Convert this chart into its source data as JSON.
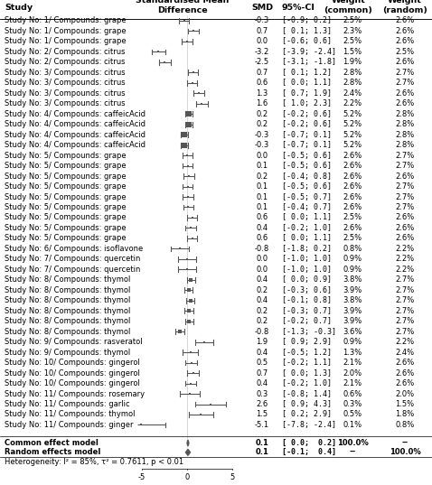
{
  "studies": [
    {
      "label": "Study No: 1/ Compounds: grape",
      "smd": -0.3,
      "ci_lo": -0.9,
      "ci_hi": 0.2,
      "w_common": "2.5%",
      "w_random": "2.6%"
    },
    {
      "label": "Study No: 1/ Compounds: grape",
      "smd": 0.7,
      "ci_lo": 0.1,
      "ci_hi": 1.3,
      "w_common": "2.3%",
      "w_random": "2.6%"
    },
    {
      "label": "Study No: 1/ Compounds: grape",
      "smd": 0.0,
      "ci_lo": -0.6,
      "ci_hi": 0.6,
      "w_common": "2.5%",
      "w_random": "2.6%"
    },
    {
      "label": "Study No: 2/ Compounds: citrus",
      "smd": -3.2,
      "ci_lo": -3.9,
      "ci_hi": -2.4,
      "w_common": "1.5%",
      "w_random": "2.5%"
    },
    {
      "label": "Study No: 2/ Compounds: citrus",
      "smd": -2.5,
      "ci_lo": -3.1,
      "ci_hi": -1.8,
      "w_common": "1.9%",
      "w_random": "2.6%"
    },
    {
      "label": "Study No: 3/ Compounds: citrus",
      "smd": 0.7,
      "ci_lo": 0.1,
      "ci_hi": 1.2,
      "w_common": "2.8%",
      "w_random": "2.7%"
    },
    {
      "label": "Study No: 3/ Compounds: citrus",
      "smd": 0.6,
      "ci_lo": 0.0,
      "ci_hi": 1.1,
      "w_common": "2.8%",
      "w_random": "2.7%"
    },
    {
      "label": "Study No: 3/ Compounds: citrus",
      "smd": 1.3,
      "ci_lo": 0.7,
      "ci_hi": 1.9,
      "w_common": "2.4%",
      "w_random": "2.6%"
    },
    {
      "label": "Study No: 3/ Compounds: citrus",
      "smd": 1.6,
      "ci_lo": 1.0,
      "ci_hi": 2.3,
      "w_common": "2.2%",
      "w_random": "2.6%"
    },
    {
      "label": "Study No: 4/ Compounds: caffeicAcid",
      "smd": 0.2,
      "ci_lo": -0.2,
      "ci_hi": 0.6,
      "w_common": "5.2%",
      "w_random": "2.8%"
    },
    {
      "label": "Study No: 4/ Compounds: caffeicAcid",
      "smd": 0.2,
      "ci_lo": -0.2,
      "ci_hi": 0.6,
      "w_common": "5.2%",
      "w_random": "2.8%"
    },
    {
      "label": "Study No: 4/ Compounds: caffeicAcid",
      "smd": -0.3,
      "ci_lo": -0.7,
      "ci_hi": 0.1,
      "w_common": "5.2%",
      "w_random": "2.8%"
    },
    {
      "label": "Study No: 4/ Compounds: caffeicAcid",
      "smd": -0.3,
      "ci_lo": -0.7,
      "ci_hi": 0.1,
      "w_common": "5.2%",
      "w_random": "2.8%"
    },
    {
      "label": "Study No: 5/ Compounds: grape",
      "smd": 0.0,
      "ci_lo": -0.5,
      "ci_hi": 0.6,
      "w_common": "2.6%",
      "w_random": "2.7%"
    },
    {
      "label": "Study No: 5/ Compounds: grape",
      "smd": 0.1,
      "ci_lo": -0.5,
      "ci_hi": 0.6,
      "w_common": "2.6%",
      "w_random": "2.7%"
    },
    {
      "label": "Study No: 5/ Compounds: grape",
      "smd": 0.2,
      "ci_lo": -0.4,
      "ci_hi": 0.8,
      "w_common": "2.6%",
      "w_random": "2.6%"
    },
    {
      "label": "Study No: 5/ Compounds: grape",
      "smd": 0.1,
      "ci_lo": -0.5,
      "ci_hi": 0.6,
      "w_common": "2.6%",
      "w_random": "2.7%"
    },
    {
      "label": "Study No: 5/ Compounds: grape",
      "smd": 0.1,
      "ci_lo": -0.5,
      "ci_hi": 0.7,
      "w_common": "2.6%",
      "w_random": "2.7%"
    },
    {
      "label": "Study No: 5/ Compounds: grape",
      "smd": 0.1,
      "ci_lo": -0.4,
      "ci_hi": 0.7,
      "w_common": "2.6%",
      "w_random": "2.7%"
    },
    {
      "label": "Study No: 5/ Compounds: grape",
      "smd": 0.6,
      "ci_lo": 0.0,
      "ci_hi": 1.1,
      "w_common": "2.5%",
      "w_random": "2.6%"
    },
    {
      "label": "Study No: 5/ Compounds: grape",
      "smd": 0.4,
      "ci_lo": -0.2,
      "ci_hi": 1.0,
      "w_common": "2.6%",
      "w_random": "2.6%"
    },
    {
      "label": "Study No: 5/ Compounds: grape",
      "smd": 0.6,
      "ci_lo": 0.0,
      "ci_hi": 1.1,
      "w_common": "2.5%",
      "w_random": "2.6%"
    },
    {
      "label": "Study No: 6/ Compounds: isoflavone",
      "smd": -0.8,
      "ci_lo": -1.8,
      "ci_hi": 0.2,
      "w_common": "0.8%",
      "w_random": "2.2%"
    },
    {
      "label": "Study No: 7/ Compounds: quercetin",
      "smd": -0.0,
      "ci_lo": -1.0,
      "ci_hi": 1.0,
      "w_common": "0.9%",
      "w_random": "2.2%"
    },
    {
      "label": "Study No: 7/ Compounds: quercetin",
      "smd": -0.0,
      "ci_lo": -1.0,
      "ci_hi": 1.0,
      "w_common": "0.9%",
      "w_random": "2.2%"
    },
    {
      "label": "Study No: 8/ Compounds: thymol",
      "smd": 0.4,
      "ci_lo": 0.0,
      "ci_hi": 0.9,
      "w_common": "3.8%",
      "w_random": "2.7%"
    },
    {
      "label": "Study No: 8/ Compounds: thymol",
      "smd": 0.2,
      "ci_lo": -0.3,
      "ci_hi": 0.6,
      "w_common": "3.9%",
      "w_random": "2.7%"
    },
    {
      "label": "Study No: 8/ Compounds: thymol",
      "smd": 0.4,
      "ci_lo": -0.1,
      "ci_hi": 0.8,
      "w_common": "3.8%",
      "w_random": "2.7%"
    },
    {
      "label": "Study No: 8/ Compounds: thymol",
      "smd": 0.2,
      "ci_lo": -0.3,
      "ci_hi": 0.7,
      "w_common": "3.9%",
      "w_random": "2.7%"
    },
    {
      "label": "Study No: 8/ Compounds: thymol",
      "smd": 0.2,
      "ci_lo": -0.2,
      "ci_hi": 0.7,
      "w_common": "3.9%",
      "w_random": "2.7%"
    },
    {
      "label": "Study No: 8/ Compounds: thymol",
      "smd": -0.8,
      "ci_lo": -1.3,
      "ci_hi": -0.3,
      "w_common": "3.6%",
      "w_random": "2.7%"
    },
    {
      "label": "Study No: 9/ Compounds: rasveratol",
      "smd": 1.9,
      "ci_lo": 0.9,
      "ci_hi": 2.9,
      "w_common": "0.9%",
      "w_random": "2.2%"
    },
    {
      "label": "Study No: 9/ Compounds: thymol",
      "smd": 0.4,
      "ci_lo": -0.5,
      "ci_hi": 1.2,
      "w_common": "1.3%",
      "w_random": "2.4%"
    },
    {
      "label": "Study No: 10/ Compounds: gingerol",
      "smd": 0.5,
      "ci_lo": -0.2,
      "ci_hi": 1.1,
      "w_common": "2.1%",
      "w_random": "2.6%"
    },
    {
      "label": "Study No: 10/ Compounds: gingerol",
      "smd": 0.7,
      "ci_lo": 0.0,
      "ci_hi": 1.3,
      "w_common": "2.0%",
      "w_random": "2.6%"
    },
    {
      "label": "Study No: 10/ Compounds: gingerol",
      "smd": 0.4,
      "ci_lo": -0.2,
      "ci_hi": 1.0,
      "w_common": "2.1%",
      "w_random": "2.6%"
    },
    {
      "label": "Study No: 11/ Compounds: rosemary",
      "smd": 0.3,
      "ci_lo": -0.8,
      "ci_hi": 1.4,
      "w_common": "0.6%",
      "w_random": "2.0%"
    },
    {
      "label": "Study No: 11/ Compounds: garlic",
      "smd": 2.6,
      "ci_lo": 0.9,
      "ci_hi": 4.3,
      "w_common": "0.3%",
      "w_random": "1.5%"
    },
    {
      "label": "Study No: 11/ Compounds: thymol",
      "smd": 1.5,
      "ci_lo": 0.2,
      "ci_hi": 2.9,
      "w_common": "0.5%",
      "w_random": "1.8%"
    },
    {
      "label": "Study No: 11/ Compounds: ginger",
      "smd": -5.1,
      "ci_lo": -7.8,
      "ci_hi": -2.4,
      "w_common": "0.1%",
      "w_random": "0.8%"
    }
  ],
  "common_smd": 0.1,
  "common_ci_lo": 0.0,
  "common_ci_hi": 0.2,
  "common_w_common": "100.0%",
  "common_w_random": "--",
  "random_smd": 0.1,
  "random_ci_lo": -0.1,
  "random_ci_hi": 0.4,
  "random_w_common": "--",
  "random_w_random": "100.0%",
  "heterogeneity_text": "Heterogeneity: I² = 85%, τ² = 0.7611, p < 0.01",
  "forest_xlim": [
    -5.5,
    5.5
  ],
  "forest_xticks": [
    -5,
    0,
    5
  ],
  "marker_color": "#555555",
  "ci_color": "#555555",
  "bg_color": "#ffffff",
  "text_color": "#000000",
  "fontsize": 6.0,
  "header_fontsize": 6.8
}
